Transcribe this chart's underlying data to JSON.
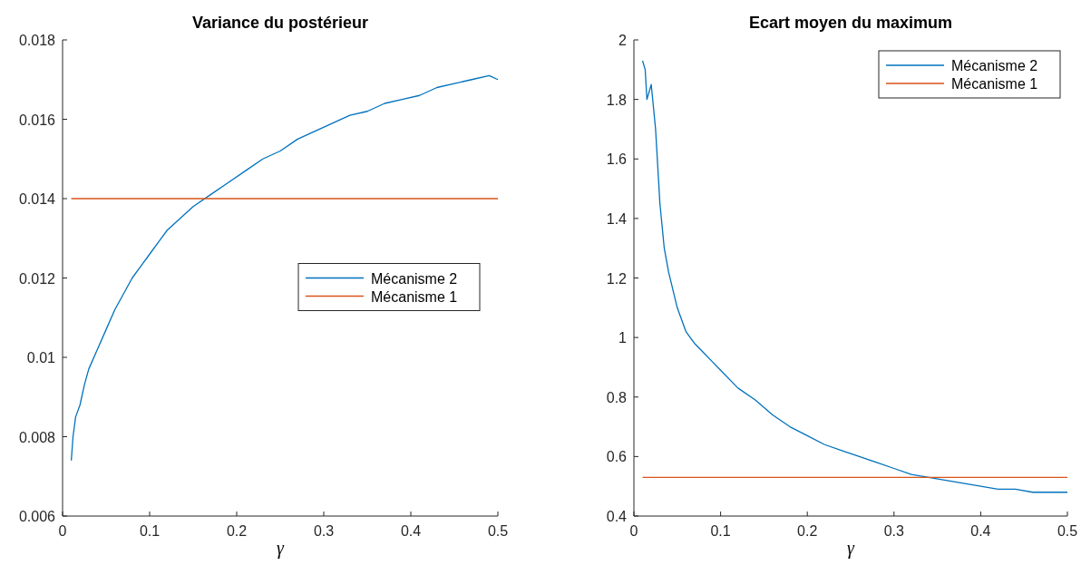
{
  "chart_data": [
    {
      "type": "line",
      "title": "Variance du postérieur",
      "xlabel": "γ",
      "xlim": [
        0,
        0.5
      ],
      "xticks": [
        0,
        0.1,
        0.2,
        0.3,
        0.4,
        0.5
      ],
      "ylim": [
        0.006,
        0.018
      ],
      "yticks": [
        0.006,
        0.008,
        0.01,
        0.012,
        0.014,
        0.016,
        0.018
      ],
      "legend": "right",
      "series": [
        {
          "name": "Mécanisme 2",
          "color": "#0072bd",
          "x": [
            0.01,
            0.012,
            0.015,
            0.02,
            0.025,
            0.03,
            0.04,
            0.05,
            0.06,
            0.07,
            0.08,
            0.09,
            0.1,
            0.11,
            0.12,
            0.13,
            0.14,
            0.15,
            0.17,
            0.19,
            0.21,
            0.23,
            0.25,
            0.27,
            0.29,
            0.31,
            0.33,
            0.35,
            0.37,
            0.39,
            0.41,
            0.43,
            0.45,
            0.47,
            0.49,
            0.5
          ],
          "values": [
            0.0074,
            0.008,
            0.0085,
            0.0088,
            0.0093,
            0.0097,
            0.0102,
            0.0107,
            0.0112,
            0.0116,
            0.012,
            0.0123,
            0.0126,
            0.0129,
            0.0132,
            0.0134,
            0.0136,
            0.0138,
            0.0141,
            0.0144,
            0.0147,
            0.015,
            0.0152,
            0.0155,
            0.0157,
            0.0159,
            0.0161,
            0.0162,
            0.0164,
            0.0165,
            0.0166,
            0.0168,
            0.0169,
            0.017,
            0.0171,
            0.017
          ]
        },
        {
          "name": "Mécanisme 1",
          "color": "#d95319",
          "x": [
            0.01,
            0.5
          ],
          "values": [
            0.014,
            0.014
          ]
        }
      ]
    },
    {
      "type": "line",
      "title": "Ecart moyen du maximum",
      "xlabel": "γ",
      "xlim": [
        0,
        0.5
      ],
      "xticks": [
        0,
        0.1,
        0.2,
        0.3,
        0.4,
        0.5
      ],
      "ylim": [
        0.4,
        2
      ],
      "yticks": [
        0.4,
        0.6,
        0.8,
        1,
        1.2,
        1.4,
        1.6,
        1.8,
        2
      ],
      "legend": "top right",
      "series": [
        {
          "name": "Mécanisme 2",
          "color": "#0072bd",
          "x": [
            0.01,
            0.013,
            0.015,
            0.02,
            0.025,
            0.03,
            0.035,
            0.04,
            0.05,
            0.06,
            0.07,
            0.08,
            0.09,
            0.1,
            0.12,
            0.14,
            0.16,
            0.18,
            0.2,
            0.22,
            0.24,
            0.26,
            0.28,
            0.3,
            0.32,
            0.34,
            0.36,
            0.38,
            0.4,
            0.42,
            0.44,
            0.46,
            0.48,
            0.5
          ],
          "values": [
            1.93,
            1.9,
            1.8,
            1.85,
            1.7,
            1.45,
            1.3,
            1.22,
            1.1,
            1.02,
            0.98,
            0.95,
            0.92,
            0.89,
            0.83,
            0.79,
            0.74,
            0.7,
            0.67,
            0.64,
            0.62,
            0.6,
            0.58,
            0.56,
            0.54,
            0.53,
            0.52,
            0.51,
            0.5,
            0.49,
            0.49,
            0.48,
            0.48,
            0.48
          ]
        },
        {
          "name": "Mécanisme 1",
          "color": "#d95319",
          "x": [
            0.01,
            0.5
          ],
          "values": [
            0.53,
            0.53
          ]
        }
      ]
    }
  ]
}
